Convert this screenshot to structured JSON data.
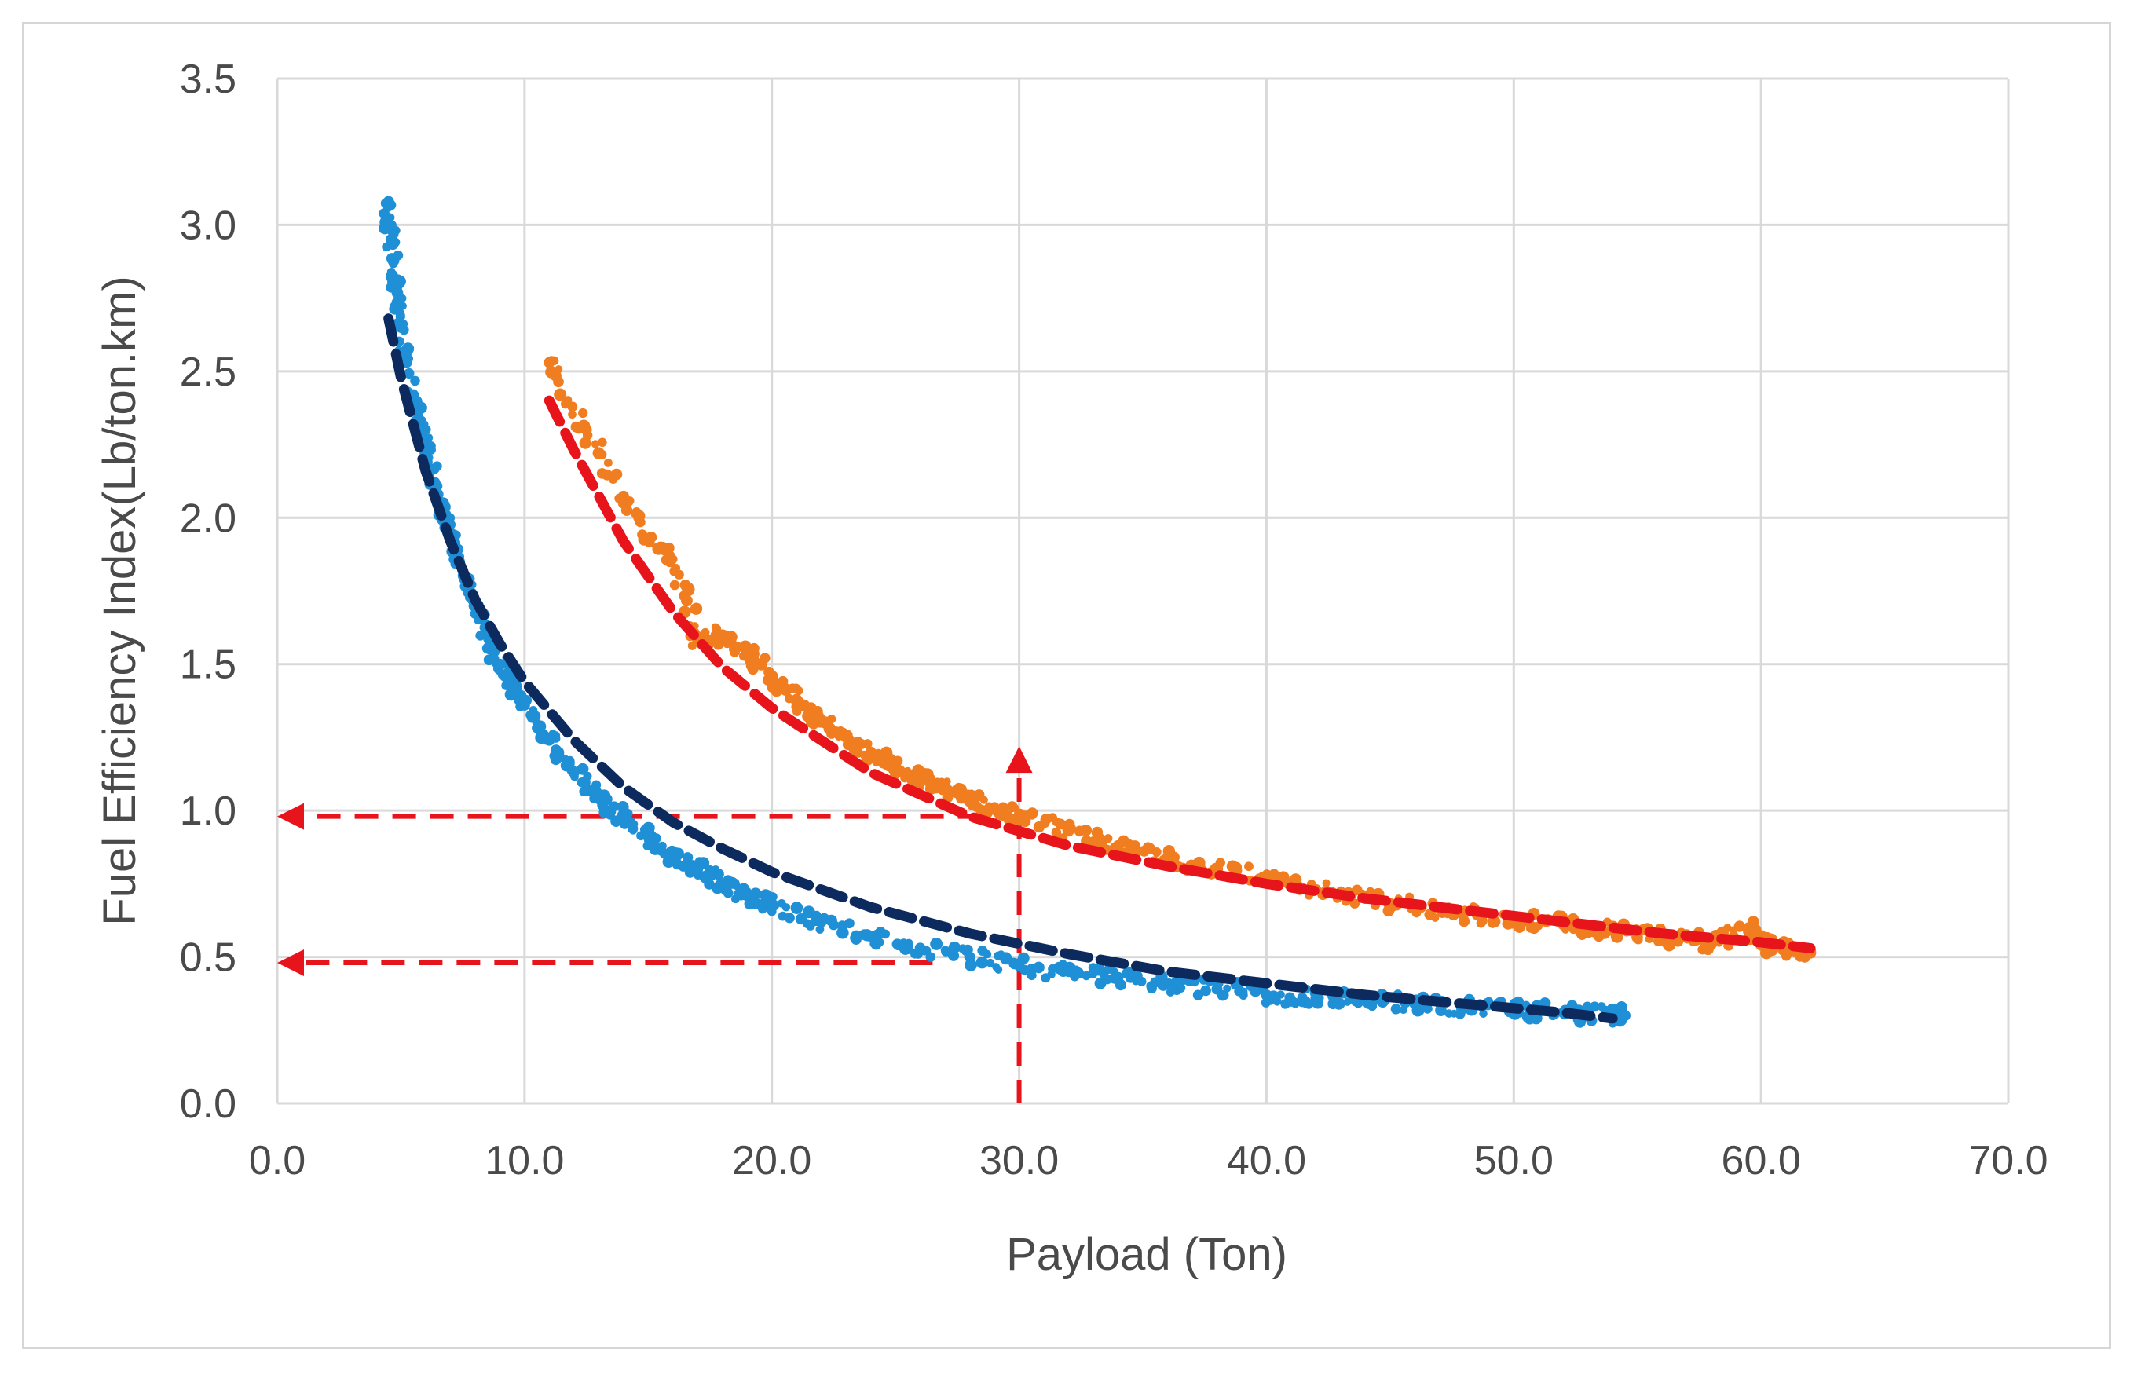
{
  "chart_data": {
    "type": "scatter",
    "title": "",
    "xlabel": "Payload (Ton)",
    "ylabel": "Fuel Efficiency Index(Lb/ton.km)",
    "xlim": [
      0,
      70
    ],
    "ylim": [
      0,
      3.5
    ],
    "x_ticks": [
      "0.0",
      "10.0",
      "20.0",
      "30.0",
      "40.0",
      "50.0",
      "60.0",
      "70.0"
    ],
    "y_ticks": [
      "0.0",
      "0.5",
      "1.0",
      "1.5",
      "2.0",
      "2.5",
      "3.0",
      "3.5"
    ],
    "grid": true,
    "legend": "none",
    "series": [
      {
        "kind": "scatter",
        "color": "#1f8fd6",
        "points": [
          [
            4.5,
            3.08
          ],
          [
            4.6,
            2.95
          ],
          [
            4.8,
            2.8
          ],
          [
            5.0,
            2.65
          ],
          [
            5.5,
            2.42
          ],
          [
            6.0,
            2.25
          ],
          [
            6.5,
            2.08
          ],
          [
            7.0,
            1.95
          ],
          [
            7.5,
            1.82
          ],
          [
            8.0,
            1.7
          ],
          [
            8.5,
            1.6
          ],
          [
            9.0,
            1.5
          ],
          [
            9.5,
            1.42
          ],
          [
            10.0,
            1.36
          ],
          [
            11.0,
            1.24
          ],
          [
            12.0,
            1.13
          ],
          [
            13.0,
            1.04
          ],
          [
            14.0,
            0.97
          ],
          [
            15.0,
            0.91
          ],
          [
            16.0,
            0.85
          ],
          [
            17.0,
            0.8
          ],
          [
            18.0,
            0.75
          ],
          [
            19.0,
            0.71
          ],
          [
            20.0,
            0.68
          ],
          [
            22.0,
            0.62
          ],
          [
            24.0,
            0.57
          ],
          [
            26.0,
            0.53
          ],
          [
            28.0,
            0.5
          ],
          [
            30.0,
            0.47
          ],
          [
            32.0,
            0.45
          ],
          [
            34.0,
            0.43
          ],
          [
            36.0,
            0.41
          ],
          [
            38.0,
            0.39
          ],
          [
            40.0,
            0.37
          ],
          [
            42.0,
            0.36
          ],
          [
            44.0,
            0.35
          ],
          [
            46.0,
            0.34
          ],
          [
            48.0,
            0.33
          ],
          [
            50.0,
            0.32
          ],
          [
            52.0,
            0.31
          ],
          [
            54.0,
            0.3
          ],
          [
            54.5,
            0.3
          ]
        ]
      },
      {
        "kind": "trend",
        "color": "#0d2a5e",
        "x": [
          4.5,
          5.0,
          6.0,
          7.0,
          8.0,
          9.0,
          10.0,
          12.0,
          14.0,
          16.0,
          18.0,
          20.0,
          24.0,
          28.0,
          32.0,
          36.0,
          40.0,
          44.0,
          48.0,
          52.0,
          54.0
        ],
        "y": [
          2.68,
          2.48,
          2.16,
          1.92,
          1.72,
          1.57,
          1.44,
          1.24,
          1.08,
          0.96,
          0.87,
          0.79,
          0.67,
          0.58,
          0.51,
          0.45,
          0.41,
          0.37,
          0.34,
          0.31,
          0.29
        ]
      },
      {
        "kind": "scatter",
        "color": "#f07d20",
        "points": [
          [
            11.0,
            2.53
          ],
          [
            12.5,
            2.3
          ],
          [
            14.0,
            2.05
          ],
          [
            15.5,
            1.9
          ],
          [
            16.5,
            1.77
          ],
          [
            17.0,
            1.58
          ],
          [
            18.0,
            1.6
          ],
          [
            19.0,
            1.55
          ],
          [
            20.0,
            1.45
          ],
          [
            21.0,
            1.38
          ],
          [
            22.0,
            1.31
          ],
          [
            23.0,
            1.25
          ],
          [
            24.0,
            1.2
          ],
          [
            25.0,
            1.15
          ],
          [
            26.0,
            1.11
          ],
          [
            27.0,
            1.07
          ],
          [
            28.0,
            1.04
          ],
          [
            29.0,
            1.01
          ],
          [
            30.0,
            0.98
          ],
          [
            32.0,
            0.93
          ],
          [
            34.0,
            0.88
          ],
          [
            36.0,
            0.84
          ],
          [
            38.0,
            0.8
          ],
          [
            40.0,
            0.77
          ],
          [
            42.0,
            0.73
          ],
          [
            44.0,
            0.7
          ],
          [
            46.0,
            0.67
          ],
          [
            48.0,
            0.65
          ],
          [
            50.0,
            0.63
          ],
          [
            52.0,
            0.61
          ],
          [
            54.0,
            0.59
          ],
          [
            56.0,
            0.57
          ],
          [
            58.0,
            0.55
          ],
          [
            59.5,
            0.6
          ],
          [
            60.0,
            0.54
          ],
          [
            61.0,
            0.53
          ],
          [
            62.0,
            0.52
          ]
        ]
      },
      {
        "kind": "trend",
        "color": "#e8141c",
        "x": [
          11.0,
          12.0,
          14.0,
          16.0,
          18.0,
          20.0,
          24.0,
          28.0,
          32.0,
          36.0,
          40.0,
          44.0,
          48.0,
          52.0,
          56.0,
          60.0,
          62.0
        ],
        "y": [
          2.4,
          2.23,
          1.92,
          1.68,
          1.49,
          1.35,
          1.13,
          0.98,
          0.88,
          0.81,
          0.75,
          0.7,
          0.66,
          0.62,
          0.58,
          0.55,
          0.53
        ]
      }
    ],
    "annotations": [
      {
        "kind": "arrow",
        "color": "#e8141c",
        "from": [
          30,
          0
        ],
        "to": [
          30,
          1.22
        ]
      },
      {
        "kind": "arrow",
        "color": "#e8141c",
        "from": [
          30,
          0.98
        ],
        "to": [
          0,
          0.98
        ]
      },
      {
        "kind": "arrow",
        "color": "#e8141c",
        "from": [
          26.5,
          0.48
        ],
        "to": [
          0,
          0.48
        ]
      }
    ]
  }
}
